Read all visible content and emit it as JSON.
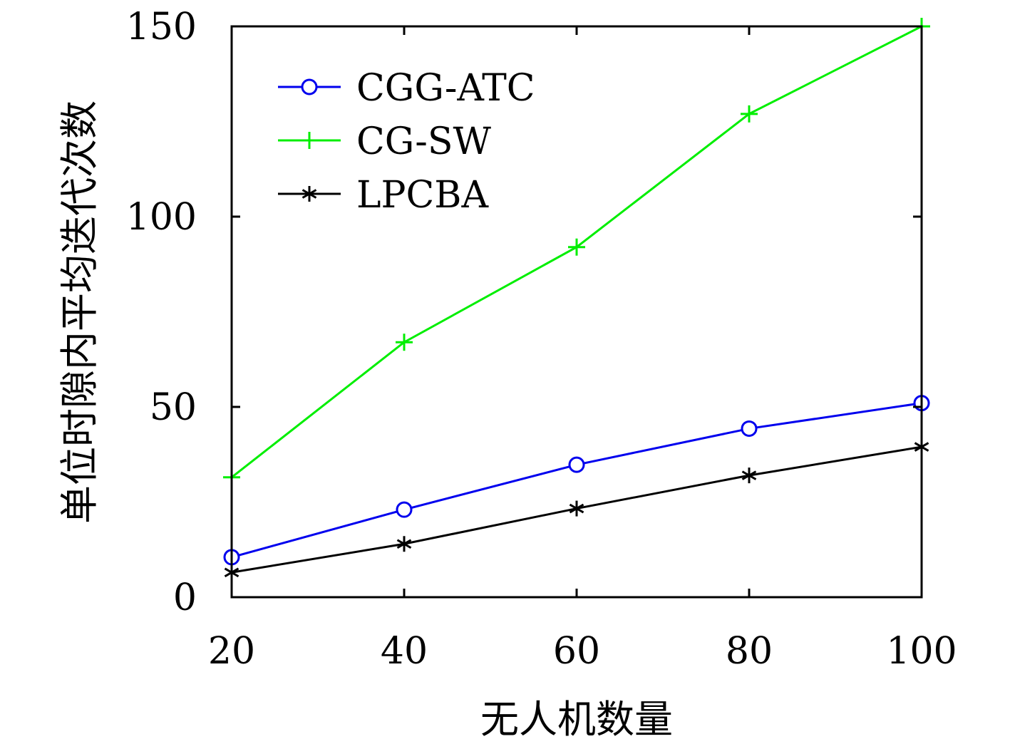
{
  "chart_data": {
    "type": "line",
    "xlabel": "无人机数量",
    "ylabel": "单位时隙内平均迭代次数",
    "x": [
      20,
      40,
      60,
      80,
      100
    ],
    "xlim": [
      20,
      100
    ],
    "ylim": [
      0,
      150
    ],
    "xticks": [
      20,
      40,
      60,
      80,
      100
    ],
    "yticks": [
      0,
      50,
      100,
      150
    ],
    "grid": false,
    "legend_position": "top-left",
    "series": [
      {
        "name": "CGG-ATC",
        "values": [
          10.5,
          23,
          34.8,
          44.3,
          51
        ],
        "color": "#0000ee",
        "marker": "circle"
      },
      {
        "name": "CG-SW",
        "values": [
          31.5,
          67,
          92,
          127,
          150
        ],
        "color": "#00ee00",
        "marker": "plus"
      },
      {
        "name": "LPCBA",
        "values": [
          6.5,
          14,
          23.3,
          32,
          39.5
        ],
        "color": "#000000",
        "marker": "asterisk"
      }
    ]
  }
}
